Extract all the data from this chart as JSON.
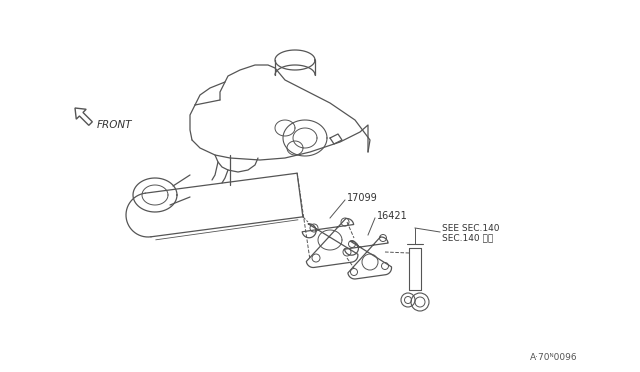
{
  "background_color": "#ffffff",
  "line_color": "#555555",
  "line_width": 0.9,
  "label_17099": "17099",
  "label_16421": "16421",
  "label_see_sec": "SEE SEC.140",
  "label_sec140": "SEC.140 参照",
  "label_front": "FRONT",
  "label_code": "A·70ᴺ0096",
  "font_size_labels": 7,
  "font_size_code": 6.5
}
